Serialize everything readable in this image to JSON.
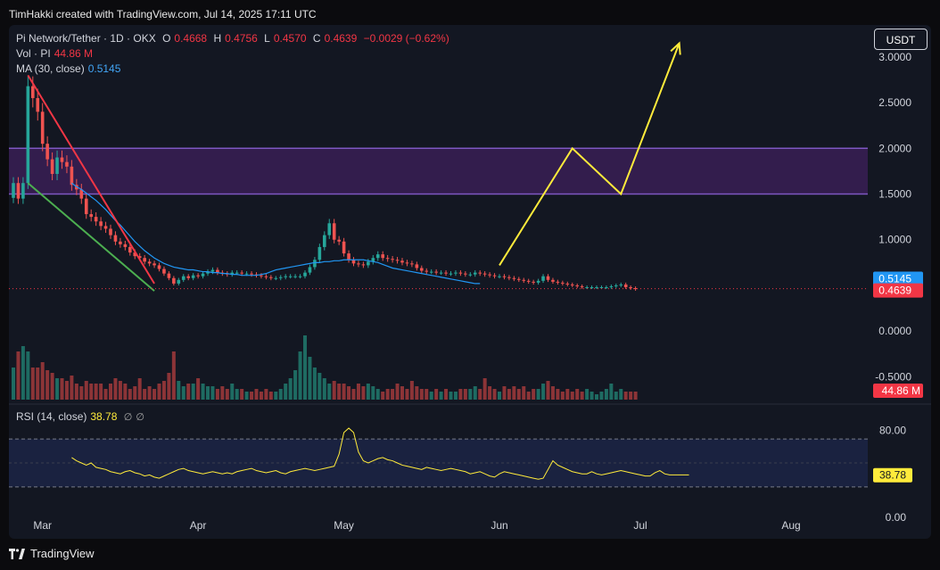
{
  "header": {
    "credit": "TimHakki created with TradingView.com, Jul 14, 2025 17:11 UTC"
  },
  "footer": {
    "brand": "TradingView"
  },
  "legend": {
    "symbol": "Pi Network/Tether · 1D · OKX",
    "o_label": "O",
    "o_value": "0.4668",
    "h_label": "H",
    "h_value": "0.4756",
    "l_label": "L",
    "l_value": "0.4570",
    "c_label": "C",
    "c_value": "0.4639",
    "change": "−0.0029 (−0.62%)",
    "vol_label": "Vol · PI",
    "vol_value": "44.86 M",
    "ma_label": "MA (30, close)",
    "ma_value": "0.5145",
    "rsi_label": "RSI (14, close)",
    "rsi_value": "38.78",
    "rsi_extra1": "∅",
    "rsi_extra2": "∅"
  },
  "currency_button": "USDT",
  "colors": {
    "up": "#26a69a",
    "down": "#ef5350",
    "ma": "#2196f3",
    "zone": "#7e57c2",
    "arrow": "#ffeb3b",
    "upper_trend": "#f23645",
    "lower_trend": "#4caf50",
    "rsi": "#ffeb3b"
  },
  "chart_data": {
    "type": "candlestick",
    "title": "Pi Network/Tether · 1D · OKX",
    "date_range": [
      "2025-02-20",
      "2025-07-14"
    ],
    "x_ticks": [
      "Mar",
      "Apr",
      "May",
      "Jun",
      "Jul",
      "Aug"
    ],
    "y_ticks": [
      "3.0000",
      "2.5000",
      "2.0000",
      "1.5000",
      "1.0000",
      "0.0000",
      "-0.5000"
    ],
    "ylim": [
      -0.75,
      3.35
    ],
    "last_price": {
      "value": 0.4639,
      "label": "0.4639"
    },
    "ma_label_value": {
      "value": 0.5145,
      "label": "0.5145"
    },
    "volume_label": "44.86 M",
    "rsi_ticks": [
      "80.00",
      "0.00"
    ],
    "rsi_label": "38.78",
    "rsi_range": [
      0,
      100
    ],
    "rsi_band": [
      30,
      70
    ],
    "resistance_zone": [
      1.5,
      2.0
    ],
    "closes": [
      1.62,
      1.45,
      1.62,
      2.68,
      2.55,
      2.4,
      2.05,
      1.88,
      1.72,
      1.9,
      1.85,
      1.8,
      1.6,
      1.55,
      1.45,
      1.28,
      1.25,
      1.2,
      1.15,
      1.12,
      1.05,
      0.98,
      0.95,
      0.92,
      0.86,
      0.82,
      0.8,
      0.76,
      0.74,
      0.72,
      0.68,
      0.63,
      0.58,
      0.52,
      0.56,
      0.6,
      0.58,
      0.61,
      0.6,
      0.63,
      0.65,
      0.67,
      0.64,
      0.63,
      0.62,
      0.64,
      0.64,
      0.63,
      0.63,
      0.62,
      0.61,
      0.6,
      0.59,
      0.58,
      0.58,
      0.59,
      0.6,
      0.6,
      0.6,
      0.6,
      0.64,
      0.7,
      0.78,
      0.92,
      1.05,
      1.18,
      1.0,
      0.98,
      0.85,
      0.78,
      0.74,
      0.73,
      0.72,
      0.76,
      0.8,
      0.84,
      0.8,
      0.79,
      0.78,
      0.77,
      0.75,
      0.74,
      0.73,
      0.69,
      0.66,
      0.65,
      0.65,
      0.64,
      0.64,
      0.63,
      0.63,
      0.64,
      0.63,
      0.62,
      0.62,
      0.64,
      0.63,
      0.62,
      0.61,
      0.6,
      0.6,
      0.59,
      0.58,
      0.57,
      0.56,
      0.55,
      0.54,
      0.53,
      0.55,
      0.6,
      0.56,
      0.54,
      0.53,
      0.52,
      0.51,
      0.5,
      0.49,
      0.48,
      0.48,
      0.48,
      0.48,
      0.48,
      0.48,
      0.49,
      0.5,
      0.51,
      0.48,
      0.47,
      0.46
    ],
    "ma30": [
      1.62,
      1.58,
      1.55,
      1.51,
      1.47,
      1.43,
      1.38,
      1.33,
      1.27,
      1.21,
      1.16,
      1.1,
      1.04,
      0.98,
      0.93,
      0.88,
      0.84,
      0.8,
      0.77,
      0.74,
      0.72,
      0.7,
      0.69,
      0.68,
      0.67,
      0.67,
      0.66,
      0.65,
      0.65,
      0.64,
      0.64,
      0.63,
      0.63,
      0.62,
      0.62,
      0.61,
      0.61,
      0.61,
      0.61,
      0.62,
      0.63,
      0.65,
      0.67,
      0.68,
      0.69,
      0.7,
      0.71,
      0.72,
      0.73,
      0.74,
      0.75,
      0.75,
      0.76,
      0.76,
      0.77,
      0.77,
      0.78,
      0.78,
      0.78,
      0.78,
      0.78,
      0.77,
      0.76,
      0.75,
      0.73,
      0.71,
      0.69,
      0.68,
      0.67,
      0.66,
      0.65,
      0.64,
      0.63,
      0.62,
      0.61,
      0.6,
      0.59,
      0.58,
      0.57,
      0.56,
      0.55,
      0.54,
      0.53,
      0.52,
      0.52
    ],
    "volume": [
      0.6,
      0.9,
      1.0,
      0.9,
      0.6,
      0.6,
      0.7,
      0.55,
      0.5,
      0.4,
      0.4,
      0.35,
      0.45,
      0.3,
      0.25,
      0.35,
      0.3,
      0.3,
      0.3,
      0.2,
      0.3,
      0.4,
      0.35,
      0.3,
      0.2,
      0.25,
      0.4,
      0.2,
      0.25,
      0.2,
      0.3,
      0.35,
      0.5,
      0.9,
      0.35,
      0.25,
      0.3,
      0.3,
      0.4,
      0.3,
      0.25,
      0.25,
      0.2,
      0.25,
      0.2,
      0.3,
      0.2,
      0.2,
      0.15,
      0.15,
      0.2,
      0.15,
      0.2,
      0.15,
      0.15,
      0.2,
      0.3,
      0.4,
      0.55,
      0.9,
      1.2,
      0.8,
      0.6,
      0.5,
      0.4,
      0.3,
      0.35,
      0.3,
      0.3,
      0.25,
      0.2,
      0.3,
      0.25,
      0.3,
      0.25,
      0.2,
      0.15,
      0.2,
      0.2,
      0.3,
      0.25,
      0.2,
      0.35,
      0.25,
      0.2,
      0.2,
      0.15,
      0.2,
      0.15,
      0.2,
      0.15,
      0.15,
      0.2,
      0.2,
      0.2,
      0.25,
      0.2,
      0.4,
      0.25,
      0.2,
      0.15,
      0.25,
      0.2,
      0.25,
      0.2,
      0.25,
      0.15,
      0.2,
      0.2,
      0.3,
      0.35,
      0.25,
      0.2,
      0.15,
      0.2,
      0.15,
      0.2,
      0.15,
      0.2,
      0.15,
      0.1,
      0.15,
      0.2,
      0.3,
      0.15,
      0.2,
      0.15,
      0.15,
      0.15
    ],
    "rsi": [
      55,
      52,
      50,
      48,
      50,
      46,
      45,
      44,
      42,
      41,
      40,
      42,
      43,
      41,
      40,
      38,
      39,
      37,
      36,
      38,
      40,
      42,
      44,
      45,
      43,
      42,
      41,
      40,
      41,
      42,
      41,
      40,
      41,
      40,
      42,
      43,
      44,
      45,
      43,
      42,
      41,
      42,
      43,
      41,
      40,
      42,
      43,
      44,
      45,
      44,
      43,
      44,
      45,
      46,
      47,
      58,
      78,
      82,
      78,
      60,
      52,
      50,
      52,
      54,
      55,
      53,
      52,
      50,
      48,
      47,
      46,
      45,
      44,
      46,
      45,
      44,
      43,
      44,
      45,
      44,
      43,
      42,
      40,
      41,
      42,
      40,
      38,
      37,
      40,
      42,
      41,
      40,
      39,
      38,
      37,
      36,
      35,
      36,
      44,
      52,
      48,
      46,
      44,
      42,
      41,
      40,
      40,
      42,
      40,
      39,
      40,
      41,
      42,
      43,
      42,
      41,
      40,
      39,
      38,
      38,
      41,
      43,
      40,
      39,
      39,
      39,
      39,
      39
    ],
    "annotations": {
      "upper_trendline": {
        "from": {
          "index": 3,
          "price": 2.8
        },
        "to": {
          "index": 29,
          "price": 0.52
        }
      },
      "lower_trendline": {
        "from": {
          "index": 3,
          "price": 1.62
        },
        "to": {
          "index": 29,
          "price": 0.44
        }
      },
      "projection_arrow": [
        {
          "index": 100,
          "price": 0.72
        },
        {
          "index": 115,
          "price": 2.0
        },
        {
          "index": 125,
          "price": 1.5
        },
        {
          "index": 137,
          "price": 3.15
        }
      ]
    }
  }
}
